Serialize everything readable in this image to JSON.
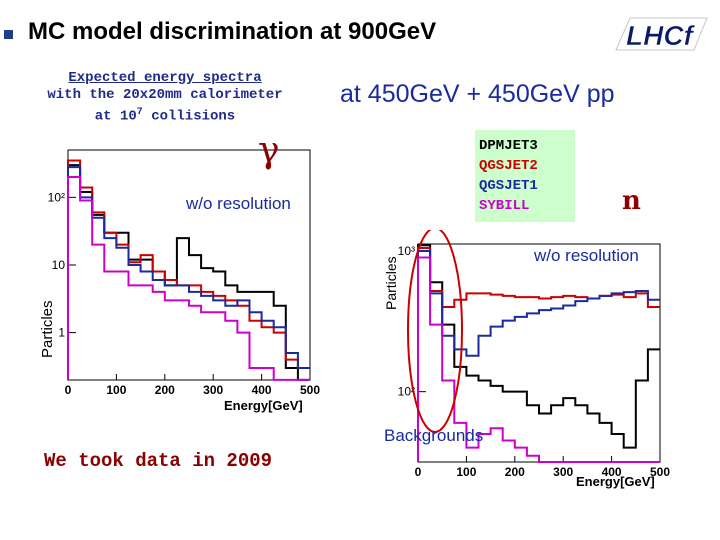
{
  "slide": {
    "title": "MC model discrimination at 900GeV",
    "logo_text": "LHCf",
    "left_caption": [
      "Expected energy spectra",
      "with the 20x20mm calorimeter",
      "at 10",
      "7",
      " collisions"
    ],
    "right_title": "at 450GeV + 450GeV pp",
    "gamma_symbol": "γ",
    "neutron_symbol": "n",
    "wo_resolution_left": "w/o resolution",
    "wo_resolution_right": "w/o resolution",
    "backgrounds_label": "Backgrounds",
    "bottom_text": "We took data in 2009"
  },
  "legend": [
    {
      "name": "DPMJET3",
      "color": "#000000"
    },
    {
      "name": "QGSJET2",
      "color": "#cc0000"
    },
    {
      "name": "QGSJET1",
      "color": "#1a2aa0"
    },
    {
      "name": "SYBILL",
      "color": "#cc00cc"
    }
  ],
  "chart_data": [
    {
      "type": "histogram",
      "ylabel": "Particles",
      "xlabel": "Energy[GeV]",
      "x_ticks": [
        "0",
        "100",
        "200",
        "300",
        "400",
        "500"
      ],
      "y_ticks": [
        "1",
        "10",
        "10²"
      ],
      "xlim": [
        0,
        500
      ],
      "ylim_log10": [
        -0.7,
        2.7
      ],
      "bin_width": 25,
      "series": [
        {
          "name": "DPMJET3",
          "color": "#000000",
          "values": [
            300,
            120,
            55,
            30,
            30,
            12,
            12,
            8,
            5,
            25,
            14,
            9,
            8,
            5,
            4,
            4,
            4,
            2.5,
            0.3,
            0.2
          ]
        },
        {
          "name": "QGSJET2",
          "color": "#cc0000",
          "values": [
            350,
            140,
            60,
            30,
            20,
            11,
            14,
            8,
            6,
            5,
            5,
            4,
            3.5,
            3,
            2.5,
            1.5,
            1.2,
            1.0,
            0.4,
            0.3
          ]
        },
        {
          "name": "QGSJET1",
          "color": "#1a2aa0",
          "values": [
            280,
            100,
            50,
            25,
            18,
            10,
            8,
            6,
            5,
            5,
            4,
            3.5,
            3,
            2.5,
            3,
            2,
            1.5,
            1.2,
            0.5,
            0.3
          ]
        },
        {
          "name": "SYBILL",
          "color": "#cc00cc",
          "values": [
            200,
            90,
            20,
            8,
            8,
            5,
            5,
            4,
            3,
            3,
            2.5,
            2,
            2,
            1.5,
            1.0,
            0.3,
            0.3,
            0.2,
            0.2,
            0.2
          ]
        }
      ]
    },
    {
      "type": "histogram",
      "ylabel": "Particles",
      "xlabel": "Energy[GeV]",
      "x_ticks": [
        "0",
        "100",
        "200",
        "300",
        "400",
        "500"
      ],
      "y_ticks": [
        "10²",
        "10³"
      ],
      "xlim": [
        0,
        500
      ],
      "ylim_log10": [
        1.5,
        3.05
      ],
      "bin_width": 25,
      "series": [
        {
          "name": "DPMJET3",
          "color": "#000000",
          "values": [
            1100,
            600,
            300,
            150,
            130,
            120,
            110,
            100,
            100,
            80,
            70,
            80,
            90,
            80,
            70,
            60,
            50,
            40,
            120,
            200
          ]
        },
        {
          "name": "QGSJET2",
          "color": "#cc0000",
          "values": [
            1050,
            520,
            400,
            450,
            500,
            500,
            490,
            480,
            470,
            470,
            460,
            470,
            480,
            470,
            460,
            480,
            490,
            470,
            500,
            400
          ]
        },
        {
          "name": "QGSJET1",
          "color": "#1a2aa0",
          "values": [
            1000,
            500,
            250,
            200,
            180,
            250,
            290,
            320,
            340,
            360,
            380,
            390,
            410,
            440,
            460,
            480,
            500,
            510,
            520,
            450
          ]
        },
        {
          "name": "SYBILL",
          "color": "#cc00cc",
          "values": [
            900,
            300,
            120,
            60,
            40,
            50,
            55,
            45,
            40,
            35,
            30,
            25,
            20,
            18,
            15,
            12,
            10,
            8,
            6,
            5
          ]
        }
      ]
    }
  ]
}
